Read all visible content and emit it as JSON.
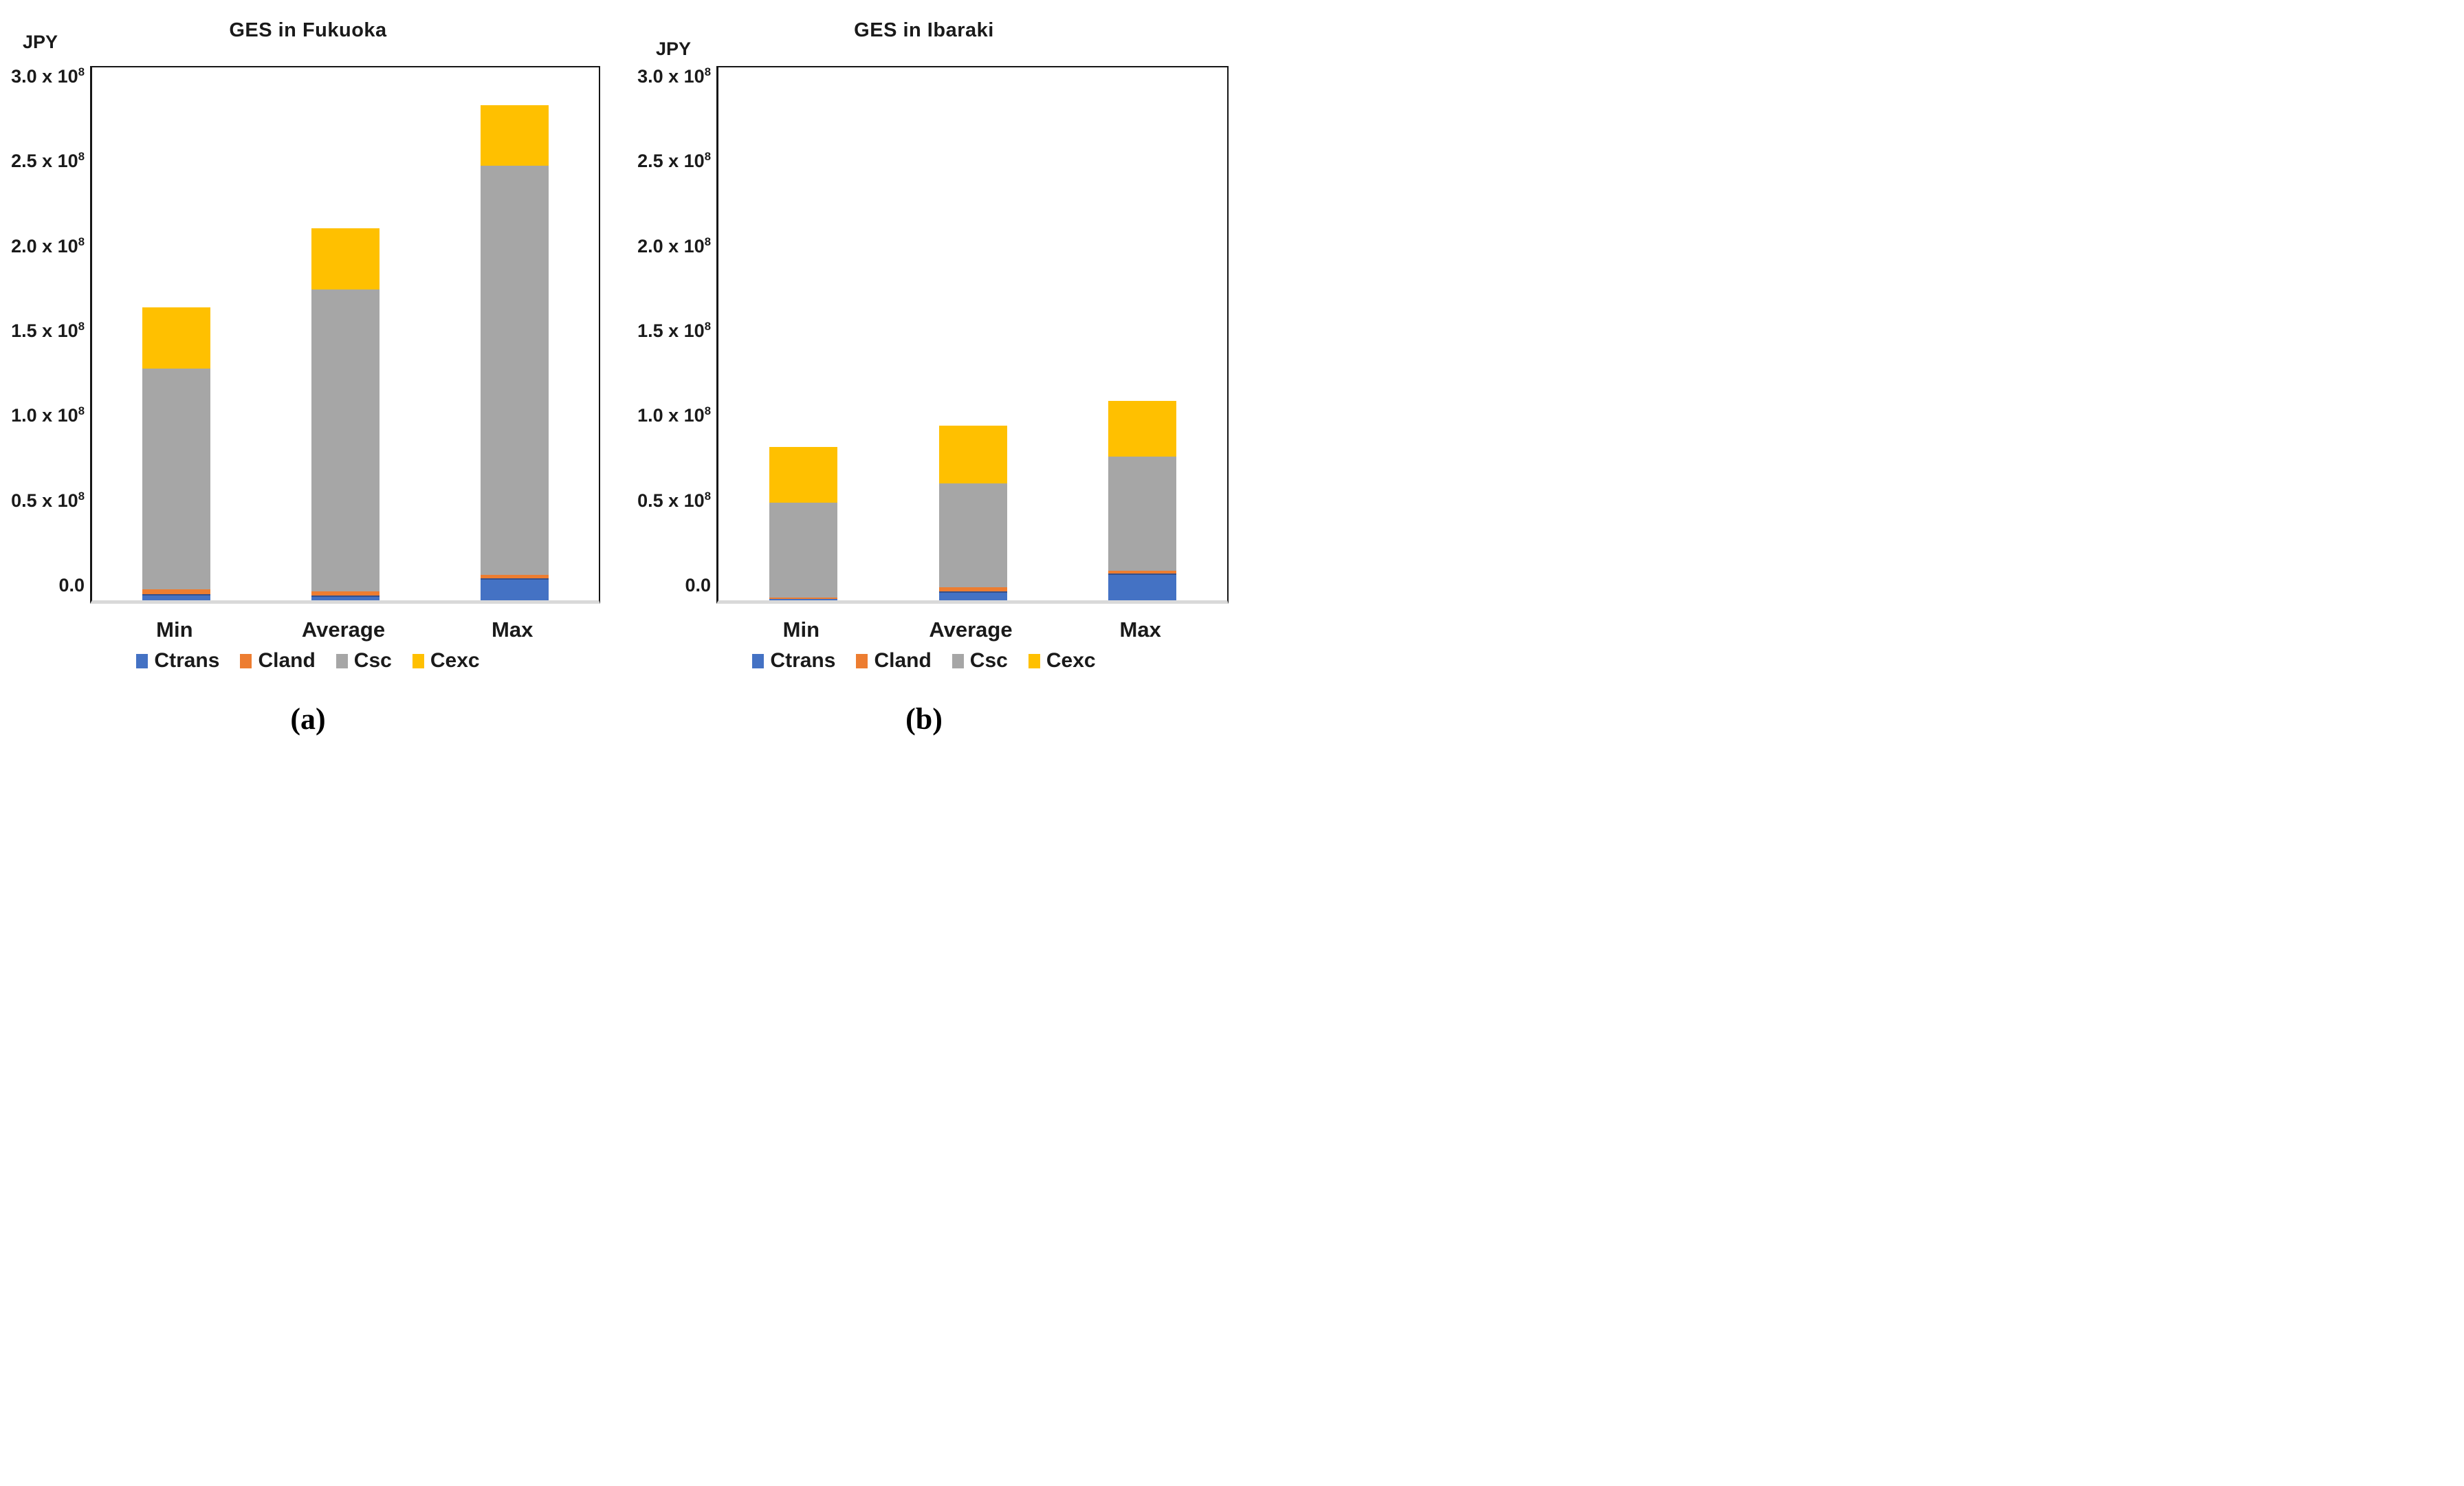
{
  "page": {
    "background_color": "#ffffff",
    "text_color": "#1a1a1a",
    "axis_bottom_line_color": "#d9d9d9",
    "axis_border_color": "#161616"
  },
  "chart_data": [
    {
      "type": "bar",
      "stacked": true,
      "title": "GES in Fukuoka",
      "ylabel": "JPY",
      "caption": "(a)",
      "value_unit": "x 10^8 JPY",
      "categories": [
        "Min",
        "Average",
        "Max"
      ],
      "series": [
        {
          "name": "Ctrans",
          "color": "#4472C4",
          "edge": "#35508C",
          "values": [
            0.035,
            0.028,
            0.128
          ]
        },
        {
          "name": "Cland",
          "color": "#ED7D31",
          "edge": "",
          "values": [
            0.03,
            0.024,
            0.021
          ]
        },
        {
          "name": "Csc",
          "color": "#A6A6A6",
          "edge": "",
          "values": [
            1.3,
            1.78,
            2.41
          ]
        },
        {
          "name": "Cexc",
          "color": "#FFC000",
          "edge": "",
          "values": [
            0.36,
            0.36,
            0.36
          ]
        }
      ],
      "totals_x10e8": [
        1.73,
        2.19,
        2.92
      ],
      "y_ticks": [
        {
          "value": 3.0,
          "label": "3.0 x 10",
          "sup": "8"
        },
        {
          "value": 2.5,
          "label": "2.5 x 10",
          "sup": "8"
        },
        {
          "value": 2.0,
          "label": "2.0 x 10",
          "sup": "8"
        },
        {
          "value": 1.5,
          "label": "1.5 x 10",
          "sup": "8"
        },
        {
          "value": 1.0,
          "label": "1.0 x 10",
          "sup": "8"
        },
        {
          "value": 0.5,
          "label": "0.5 x 10",
          "sup": "8"
        },
        {
          "value": 0.0,
          "label": "0.0",
          "sup": ""
        }
      ],
      "ylim": [
        -0.08,
        3.06
      ],
      "grid": false,
      "legend_position": "bottom"
    },
    {
      "type": "bar",
      "stacked": true,
      "title": "GES in Ibaraki",
      "ylabel": "JPY",
      "caption": "(b)",
      "value_unit": "x 10^8 JPY",
      "categories": [
        "Min",
        "Average",
        "Max"
      ],
      "series": [
        {
          "name": "Ctrans",
          "color": "#4472C4",
          "edge": "#35508C",
          "values": [
            0.01,
            0.054,
            0.16
          ]
        },
        {
          "name": "Cland",
          "color": "#ED7D31",
          "edge": "",
          "values": [
            0.005,
            0.024,
            0.015
          ]
        },
        {
          "name": "Csc",
          "color": "#A6A6A6",
          "edge": "",
          "values": [
            0.56,
            0.61,
            0.67
          ]
        },
        {
          "name": "Cexc",
          "color": "#FFC000",
          "edge": "",
          "values": [
            0.33,
            0.34,
            0.33
          ]
        }
      ],
      "totals_x10e8": [
        0.91,
        1.03,
        1.18
      ],
      "y_ticks": [
        {
          "value": 3.0,
          "label": "3.0 x 10",
          "sup": "8"
        },
        {
          "value": 2.5,
          "label": "2.5 x 10",
          "sup": "8"
        },
        {
          "value": 2.0,
          "label": "2.0 x 10",
          "sup": "8"
        },
        {
          "value": 1.5,
          "label": "1.5 x 10",
          "sup": "8"
        },
        {
          "value": 1.0,
          "label": "1.0 x 10",
          "sup": "8"
        },
        {
          "value": 0.5,
          "label": "0.5 x 10",
          "sup": "8"
        },
        {
          "value": 0.0,
          "label": "0.0",
          "sup": ""
        }
      ],
      "ylim": [
        -0.08,
        3.06
      ],
      "grid": false,
      "legend_position": "bottom"
    }
  ]
}
